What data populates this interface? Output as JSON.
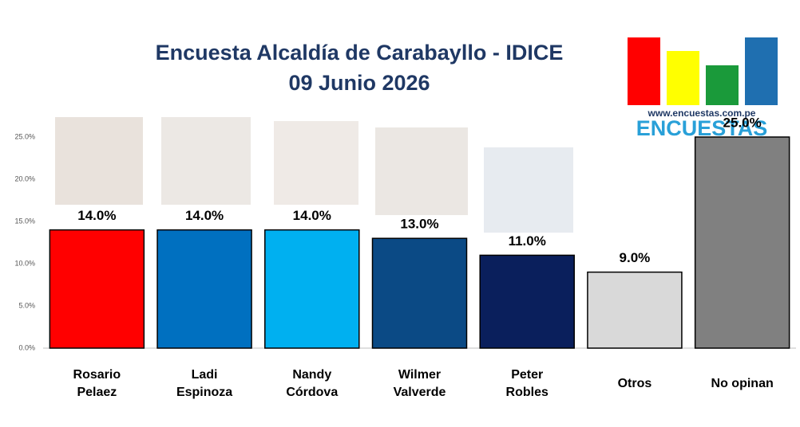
{
  "chart_data": {
    "type": "bar",
    "title": "Encuesta Alcaldía de Carabayllo - IDICE",
    "subtitle": "09 Junio 2026",
    "categories": [
      "Rosario Pelaez",
      "Ladi Espinoza",
      "Nandy Córdova",
      "Wilmer Valverde",
      "Peter Robles",
      "Otros",
      "No opinan"
    ],
    "values": [
      14,
      14,
      14,
      13,
      11,
      9,
      25
    ],
    "value_labels": [
      "14.0%",
      "14.0%",
      "14.0%",
      "13.0%",
      "11.0%",
      "9.0%",
      "25.0%"
    ],
    "colors": [
      "#ff0000",
      "#0070c0",
      "#00b0f0",
      "#0b4a85",
      "#0a1f5c",
      "#d9d9d9",
      "#808080"
    ],
    "ylim": [
      0,
      25
    ],
    "yticks": [
      {
        "value": 0,
        "label": "0.0%"
      },
      {
        "value": 5,
        "label": "5.0%"
      },
      {
        "value": 10,
        "label": "10.0%"
      },
      {
        "value": 15,
        "label": "15.0%"
      },
      {
        "value": 20,
        "label": "20.0%"
      },
      {
        "value": 25,
        "label": "25.0%"
      }
    ],
    "grid": false,
    "logo": {
      "url": "www.encuestas.com.pe",
      "name": "ENCUESTAS"
    }
  }
}
